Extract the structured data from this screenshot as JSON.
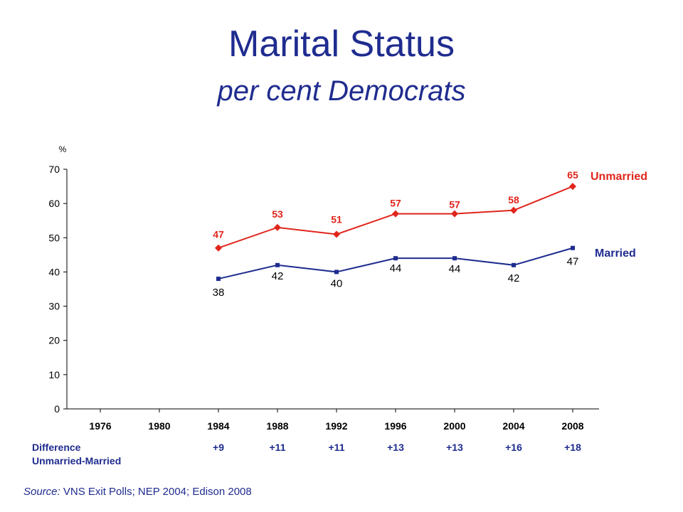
{
  "header": {
    "title": "Marital Status",
    "subtitle": "per cent Democrats"
  },
  "chart_data": {
    "type": "line",
    "ylabel": "%",
    "ylim": [
      0,
      70
    ],
    "yticks": [
      0,
      10,
      20,
      30,
      40,
      50,
      60,
      70
    ],
    "categories": [
      "1976",
      "1980",
      "1984",
      "1988",
      "1992",
      "1996",
      "2000",
      "2004",
      "2008"
    ],
    "series": [
      {
        "name": "Unmarried",
        "color": "#e0251b",
        "marker": "diamond",
        "values": [
          null,
          null,
          47,
          53,
          51,
          57,
          57,
          58,
          65
        ]
      },
      {
        "name": "Married",
        "color": "#1f2c8f",
        "marker": "square",
        "values": [
          null,
          null,
          38,
          42,
          40,
          44,
          44,
          42,
          47
        ]
      }
    ],
    "grid": false,
    "legend": "right"
  },
  "difference": {
    "label_line1": "Difference",
    "label_line2": "Unmarried-Married",
    "values": [
      "",
      "",
      "+9",
      "+11",
      "+11",
      "+13",
      "+13",
      "+16",
      "+18"
    ]
  },
  "source": {
    "label": "Source:",
    "text": " VNS Exit Polls; NEP 2004; Edison 2008"
  }
}
